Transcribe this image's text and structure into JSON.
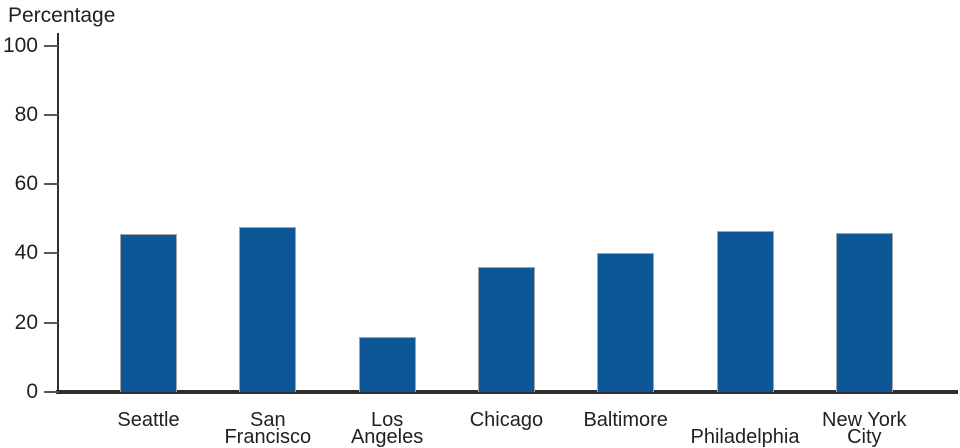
{
  "chart_data": {
    "type": "bar",
    "title": "Percentage",
    "ylabel": "Percentage",
    "xlabel": "",
    "ylim": [
      0,
      100
    ],
    "yticks": [
      0,
      20,
      40,
      60,
      80,
      100
    ],
    "grid": false,
    "legend": "none",
    "categories": [
      "Seattle",
      "San Francisco",
      "Los Angeles",
      "Chicago",
      "Baltimore",
      "Philadelphia",
      "New York City"
    ],
    "category_label_lines": [
      [
        "Seattle"
      ],
      [
        "San",
        "Francisco"
      ],
      [
        "Los",
        "Angeles"
      ],
      [
        "Chicago"
      ],
      [
        "Baltimore"
      ],
      [
        "Philadelphia"
      ],
      [
        "New York",
        "City"
      ]
    ],
    "category_label_row_offset": [
      0,
      0,
      0,
      0,
      0,
      1,
      0
    ],
    "values": [
      45.5,
      47.5,
      16,
      36,
      40,
      46.5,
      46
    ],
    "colors": {
      "bar_fill": "#0d5796",
      "bar_border": "#a2a4a7",
      "axis_line": "#2e2e30",
      "tick_mark": "#57585a",
      "text": "#231f20"
    }
  }
}
